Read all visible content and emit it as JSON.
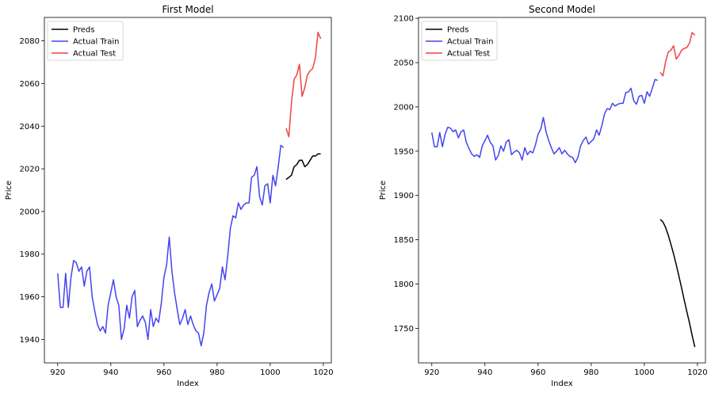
{
  "chart_data": [
    {
      "type": "line",
      "title": "First Model",
      "xlabel": "Index",
      "ylabel": "Price",
      "xlim": [
        915,
        1023
      ],
      "ylim": [
        1929,
        2091
      ],
      "xticks": [
        920,
        940,
        960,
        980,
        1000,
        1020
      ],
      "yticks": [
        1940,
        1960,
        1980,
        2000,
        2020,
        2040,
        2060,
        2080
      ],
      "legend_position": "top-left",
      "grid": false,
      "series": [
        {
          "name": "Preds",
          "color": "#000000",
          "x": [
            1006,
            1007,
            1008,
            1009,
            1010,
            1011,
            1012,
            1013,
            1014,
            1015,
            1016,
            1017,
            1018,
            1019
          ],
          "values": [
            2015,
            2016,
            2017,
            2021,
            2022,
            2024,
            2024,
            2021,
            2022,
            2024,
            2026,
            2026,
            2027,
            2027
          ]
        },
        {
          "name": "Actual Train",
          "color": "#4444ee",
          "x": [
            920,
            921,
            922,
            923,
            924,
            925,
            926,
            927,
            928,
            929,
            930,
            931,
            932,
            933,
            934,
            935,
            936,
            937,
            938,
            939,
            940,
            941,
            942,
            943,
            944,
            945,
            946,
            947,
            948,
            949,
            950,
            951,
            952,
            953,
            954,
            955,
            956,
            957,
            958,
            959,
            960,
            961,
            962,
            963,
            964,
            965,
            966,
            967,
            968,
            969,
            970,
            971,
            972,
            973,
            974,
            975,
            976,
            977,
            978,
            979,
            980,
            981,
            982,
            983,
            984,
            985,
            986,
            987,
            988,
            989,
            990,
            991,
            992,
            993,
            994,
            995,
            996,
            997,
            998,
            999,
            1000,
            1001,
            1002,
            1003,
            1004,
            1005
          ],
          "values": [
            1971,
            1955,
            1955,
            1971,
            1955,
            1969,
            1977,
            1976,
            1972,
            1974,
            1965,
            1972,
            1974,
            1960,
            1953,
            1947,
            1944,
            1946,
            1943,
            1956,
            1962,
            1968,
            1960,
            1956,
            1940,
            1945,
            1956,
            1950,
            1960,
            1963,
            1946,
            1949,
            1951,
            1948,
            1940,
            1954,
            1946,
            1950,
            1948,
            1957,
            1969,
            1975,
            1988,
            1972,
            1962,
            1954,
            1947,
            1950,
            1954,
            1947,
            1951,
            1947,
            1944,
            1943,
            1937,
            1943,
            1956,
            1962,
            1966,
            1958,
            1961,
            1964,
            1974,
            1968,
            1979,
            1992,
            1998,
            1997,
            2004,
            2001,
            2003,
            2004,
            2004,
            2016,
            2017,
            2021,
            2007,
            2003,
            2012,
            2013,
            2004,
            2017,
            2012,
            2021,
            2031,
            2030
          ]
        },
        {
          "name": "Actual Test",
          "color": "#ee4444",
          "x": [
            1006,
            1007,
            1008,
            1009,
            1010,
            1011,
            1012,
            1013,
            1014,
            1015,
            1016,
            1017,
            1018,
            1019
          ],
          "values": [
            2039,
            2035,
            2051,
            2062,
            2064,
            2069,
            2054,
            2058,
            2064,
            2066,
            2067,
            2072,
            2084,
            2081
          ]
        }
      ]
    },
    {
      "type": "line",
      "title": "Second Model",
      "xlabel": "Index",
      "ylabel": "Price",
      "xlim": [
        915,
        1023
      ],
      "ylim": [
        1711,
        2101
      ],
      "xticks": [
        920,
        940,
        960,
        980,
        1000,
        1020
      ],
      "yticks": [
        1750,
        1800,
        1850,
        1900,
        1950,
        2000,
        2050,
        2100
      ],
      "legend_position": "top-left",
      "grid": false,
      "series": [
        {
          "name": "Preds",
          "color": "#000000",
          "x": [
            1006,
            1007,
            1008,
            1009,
            1010,
            1011,
            1012,
            1013,
            1014,
            1015,
            1016,
            1017,
            1018,
            1019
          ],
          "values": [
            1873,
            1870,
            1864,
            1855,
            1845,
            1834,
            1822,
            1809,
            1796,
            1782,
            1769,
            1756,
            1742,
            1729
          ]
        },
        {
          "name": "Actual Train",
          "color": "#4444ee",
          "x": [
            920,
            921,
            922,
            923,
            924,
            925,
            926,
            927,
            928,
            929,
            930,
            931,
            932,
            933,
            934,
            935,
            936,
            937,
            938,
            939,
            940,
            941,
            942,
            943,
            944,
            945,
            946,
            947,
            948,
            949,
            950,
            951,
            952,
            953,
            954,
            955,
            956,
            957,
            958,
            959,
            960,
            961,
            962,
            963,
            964,
            965,
            966,
            967,
            968,
            969,
            970,
            971,
            972,
            973,
            974,
            975,
            976,
            977,
            978,
            979,
            980,
            981,
            982,
            983,
            984,
            985,
            986,
            987,
            988,
            989,
            990,
            991,
            992,
            993,
            994,
            995,
            996,
            997,
            998,
            999,
            1000,
            1001,
            1002,
            1003,
            1004,
            1005
          ],
          "values": [
            1971,
            1955,
            1955,
            1971,
            1955,
            1969,
            1977,
            1976,
            1972,
            1974,
            1965,
            1972,
            1974,
            1960,
            1953,
            1947,
            1944,
            1946,
            1943,
            1956,
            1962,
            1968,
            1960,
            1956,
            1940,
            1945,
            1956,
            1950,
            1960,
            1963,
            1946,
            1949,
            1951,
            1948,
            1940,
            1954,
            1946,
            1950,
            1948,
            1957,
            1969,
            1975,
            1988,
            1972,
            1962,
            1954,
            1947,
            1950,
            1954,
            1947,
            1951,
            1947,
            1944,
            1943,
            1937,
            1943,
            1956,
            1962,
            1966,
            1958,
            1961,
            1964,
            1974,
            1968,
            1979,
            1992,
            1998,
            1997,
            2004,
            2001,
            2003,
            2004,
            2004,
            2016,
            2017,
            2021,
            2007,
            2003,
            2012,
            2013,
            2004,
            2017,
            2012,
            2021,
            2031,
            2030
          ]
        },
        {
          "name": "Actual Test",
          "color": "#ee4444",
          "x": [
            1006,
            1007,
            1008,
            1009,
            1010,
            1011,
            1012,
            1013,
            1014,
            1015,
            1016,
            1017,
            1018,
            1019
          ],
          "values": [
            2039,
            2035,
            2051,
            2062,
            2064,
            2069,
            2054,
            2058,
            2064,
            2066,
            2067,
            2072,
            2084,
            2081
          ]
        }
      ]
    }
  ]
}
